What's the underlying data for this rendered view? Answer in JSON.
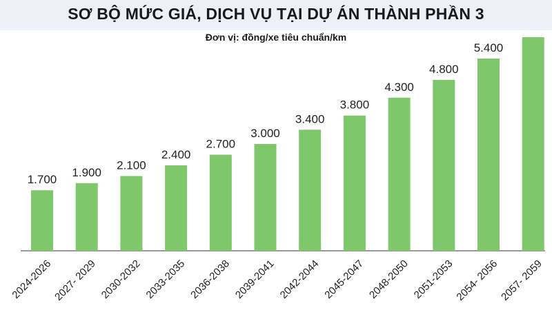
{
  "chart_data": {
    "type": "bar",
    "title": "SƠ BỘ MỨC GIÁ, DỊCH VỤ TẠI DỰ ÁN THÀNH PHẦN 3",
    "subtitle": "Đơn vị: đồng/xe tiêu chuẩn/km",
    "categories": [
      "2024-2026",
      "2027- 2029",
      "2030-2032",
      "2033-2035",
      "2036-2038",
      "2039-2041",
      "2042-2044",
      "2045-2047",
      "2048-2050",
      "2051-2053",
      "2054- 2056",
      "2057- 2059"
    ],
    "values": [
      1700,
      1900,
      2100,
      2400,
      2700,
      3000,
      3400,
      3800,
      4300,
      4800,
      5400,
      6000
    ],
    "value_labels": [
      "1.700",
      "1.900",
      "2.100",
      "2.400",
      "2.700",
      "3.000",
      "3.400",
      "3.800",
      "4.300",
      "4.800",
      "5.400",
      ""
    ],
    "xlabel": "",
    "ylabel": "",
    "ylim": [
      0,
      6000
    ],
    "grid": false,
    "bar_color": "#7ec86b"
  }
}
